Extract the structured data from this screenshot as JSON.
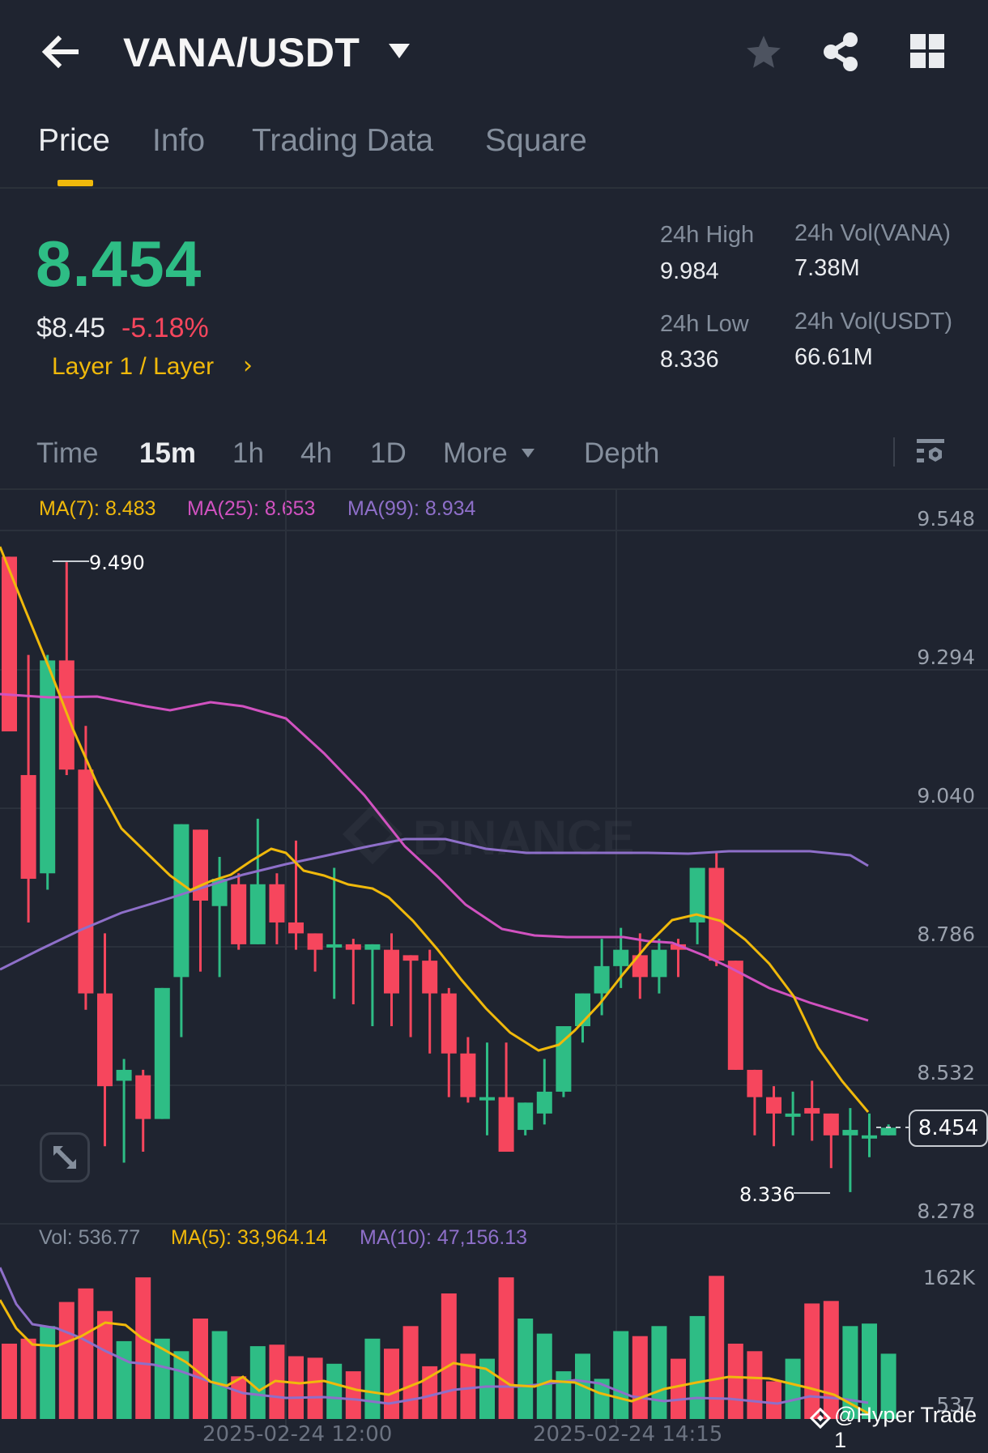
{
  "header": {
    "pair": "VANA/USDT",
    "icons": {
      "back": "arrow-left-icon",
      "dropdown": "caret-down-icon",
      "favorite": "star-icon",
      "share": "share-icon",
      "more": "grid-icon"
    }
  },
  "tabs": [
    {
      "label": "Price",
      "active": true
    },
    {
      "label": "Info",
      "active": false
    },
    {
      "label": "Trading Data",
      "active": false
    },
    {
      "label": "Square",
      "active": false
    }
  ],
  "ticker": {
    "last_price": "8.454",
    "usd_price": "$8.45",
    "change_pct": "-5.18%",
    "category": "Layer 1 / Layer",
    "category_arrow": "›",
    "stats": {
      "high_label": "24h High",
      "high_value": "9.984",
      "low_label": "24h Low",
      "low_value": "8.336",
      "vol_base_label": "24h Vol(VANA)",
      "vol_base_value": "7.38M",
      "vol_quote_label": "24h Vol(USDT)",
      "vol_quote_value": "66.61M"
    }
  },
  "timeframes": {
    "items": [
      {
        "label": "Time",
        "active": false
      },
      {
        "label": "15m",
        "active": true
      },
      {
        "label": "1h",
        "active": false
      },
      {
        "label": "4h",
        "active": false
      },
      {
        "label": "1D",
        "active": false
      },
      {
        "label": "More",
        "active": false
      },
      {
        "label": "Depth",
        "active": false
      }
    ],
    "settings_icon": "chart-settings-icon"
  },
  "indicators": {
    "ma7": "MA(7): 8.483",
    "ma25": "MA(25): 8.653",
    "ma99": "MA(99): 8.934"
  },
  "price_axis": {
    "ticks": [
      "9.548",
      "9.294",
      "9.040",
      "8.786",
      "8.532",
      "8.278"
    ],
    "current_tag": "8.454",
    "max_marker": "9.490",
    "min_marker": "8.336"
  },
  "volume": {
    "vol": "Vol: 536.77",
    "ma5": "MA(5): 33,964.14",
    "ma10": "MA(10): 47,156.13",
    "axis_top": "162K",
    "axis_bottom": "537"
  },
  "time_axis": [
    "2025-02-24 12:00",
    "2025-02-24 14:15"
  ],
  "watermark_text": "BINANCE",
  "overlay_credit": "@Hyper Trade 1",
  "colors": {
    "up": "#2ebd85",
    "down": "#f6465d",
    "accent": "#f0b90b",
    "ma7": "#f0b90b",
    "ma25": "#d152c0",
    "ma99": "#8e6fc9",
    "bg": "#1f2430"
  },
  "chart_data": {
    "type": "candlestick",
    "title": "VANA/USDT 15m",
    "ylim": [
      8.278,
      9.548
    ],
    "y_ticks": [
      9.548,
      9.294,
      9.04,
      8.786,
      8.532,
      8.278
    ],
    "x_labels": [
      "2025-02-24 12:00",
      "2025-02-24 14:15"
    ],
    "annotations": [
      {
        "label": "9.490",
        "type": "high"
      },
      {
        "label": "8.336",
        "type": "low"
      }
    ],
    "candles": [
      {
        "o": 9.5,
        "h": 9.5,
        "c": 9.18,
        "l": 9.18
      },
      {
        "o": 9.1,
        "h": 9.32,
        "c": 8.91,
        "l": 8.83
      },
      {
        "o": 8.92,
        "h": 9.32,
        "c": 9.31,
        "l": 8.89
      },
      {
        "o": 9.31,
        "h": 9.49,
        "c": 9.11,
        "l": 9.1
      },
      {
        "o": 9.11,
        "h": 9.19,
        "c": 8.7,
        "l": 8.67
      },
      {
        "o": 8.7,
        "h": 8.81,
        "c": 8.53,
        "l": 8.42
      },
      {
        "o": 8.54,
        "h": 8.58,
        "c": 8.56,
        "l": 8.39
      },
      {
        "o": 8.55,
        "h": 8.56,
        "c": 8.47,
        "l": 8.41
      },
      {
        "o": 8.47,
        "h": 8.71,
        "c": 8.71,
        "l": 8.51
      },
      {
        "o": 8.73,
        "h": 9.0,
        "c": 9.01,
        "l": 8.62
      },
      {
        "o": 9.0,
        "h": 9.0,
        "c": 8.87,
        "l": 8.74
      },
      {
        "o": 8.86,
        "h": 8.95,
        "c": 8.91,
        "l": 8.73
      },
      {
        "o": 8.9,
        "h": 8.92,
        "c": 8.79,
        "l": 8.78
      },
      {
        "o": 8.79,
        "h": 9.02,
        "c": 8.9,
        "l": 8.79
      },
      {
        "o": 8.9,
        "h": 8.92,
        "c": 8.83,
        "l": 8.79
      },
      {
        "o": 8.83,
        "h": 8.98,
        "c": 8.81,
        "l": 8.78
      },
      {
        "o": 8.81,
        "h": 8.81,
        "c": 8.78,
        "l": 8.74
      },
      {
        "o": 8.79,
        "h": 8.93,
        "c": 8.79,
        "l": 8.69
      },
      {
        "o": 8.79,
        "h": 8.8,
        "c": 8.78,
        "l": 8.68
      },
      {
        "o": 8.78,
        "h": 8.79,
        "c": 8.79,
        "l": 8.64
      },
      {
        "o": 8.78,
        "h": 8.81,
        "c": 8.7,
        "l": 8.64
      },
      {
        "o": 8.77,
        "h": 8.76,
        "c": 8.76,
        "l": 8.62
      },
      {
        "o": 8.76,
        "h": 8.78,
        "c": 8.7,
        "l": 8.59
      },
      {
        "o": 8.7,
        "h": 8.71,
        "c": 8.59,
        "l": 8.51
      },
      {
        "o": 8.59,
        "h": 8.62,
        "c": 8.51,
        "l": 8.5
      },
      {
        "o": 8.51,
        "h": 8.61,
        "c": 8.51,
        "l": 8.44
      },
      {
        "o": 8.51,
        "h": 8.61,
        "c": 8.41,
        "l": 8.42
      },
      {
        "o": 8.45,
        "h": 8.48,
        "c": 8.5,
        "l": 8.44
      },
      {
        "o": 8.48,
        "h": 8.58,
        "c": 8.52,
        "l": 8.46
      },
      {
        "o": 8.52,
        "h": 8.59,
        "c": 8.64,
        "l": 8.51
      },
      {
        "o": 8.64,
        "h": 8.7,
        "c": 8.7,
        "l": 8.61
      },
      {
        "o": 8.7,
        "h": 8.8,
        "c": 8.75,
        "l": 8.66
      },
      {
        "o": 8.75,
        "h": 8.82,
        "c": 8.78,
        "l": 8.71
      },
      {
        "o": 8.77,
        "h": 8.81,
        "c": 8.73,
        "l": 8.69
      },
      {
        "o": 8.73,
        "h": 8.8,
        "c": 8.78,
        "l": 8.7
      },
      {
        "o": 8.79,
        "h": 8.8,
        "c": 8.78,
        "l": 8.73
      },
      {
        "o": 8.83,
        "h": 8.89,
        "c": 8.93,
        "l": 8.79
      },
      {
        "o": 8.93,
        "h": 8.96,
        "c": 8.76,
        "l": 8.75
      },
      {
        "o": 8.76,
        "h": 8.75,
        "c": 8.56,
        "l": 8.56
      },
      {
        "o": 8.56,
        "h": 8.55,
        "c": 8.51,
        "l": 8.44
      },
      {
        "o": 8.51,
        "h": 8.53,
        "c": 8.48,
        "l": 8.42
      },
      {
        "o": 8.48,
        "h": 8.52,
        "c": 8.48,
        "l": 8.44
      },
      {
        "o": 8.49,
        "h": 8.54,
        "c": 8.48,
        "l": 8.43
      },
      {
        "o": 8.48,
        "h": 8.48,
        "c": 8.44,
        "l": 8.38
      },
      {
        "o": 8.44,
        "h": 8.49,
        "c": 8.45,
        "l": 8.336
      },
      {
        "o": 8.44,
        "h": 8.48,
        "c": 8.44,
        "l": 8.4
      },
      {
        "o": 8.44,
        "h": 8.46,
        "c": 8.454,
        "l": 8.44
      }
    ],
    "series": [
      {
        "name": "MA(7)",
        "last": 8.483
      },
      {
        "name": "MA(25)",
        "last": 8.653
      },
      {
        "name": "MA(99)",
        "last": 8.934
      }
    ],
    "volume_axis": [
      "162K",
      "537"
    ]
  }
}
